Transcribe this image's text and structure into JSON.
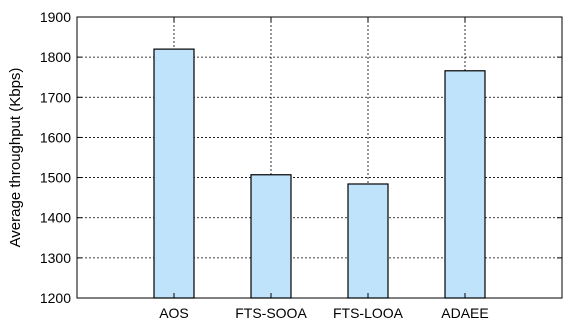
{
  "chart_data": {
    "type": "bar",
    "title": "",
    "xlabel": "",
    "ylabel": "Average throughput (Kbps)",
    "categories": [
      "AOS",
      "FTS-SOOA",
      "FTS-LOOA",
      "ADAEE"
    ],
    "values": [
      1820,
      1507,
      1484,
      1766
    ],
    "ylim": [
      1200,
      1900
    ],
    "yticks": [
      1200,
      1300,
      1400,
      1500,
      1600,
      1700,
      1800,
      1900
    ],
    "grid": "dashed",
    "bar_color": "#bfe3fb",
    "bar_stroke": "#000000"
  }
}
